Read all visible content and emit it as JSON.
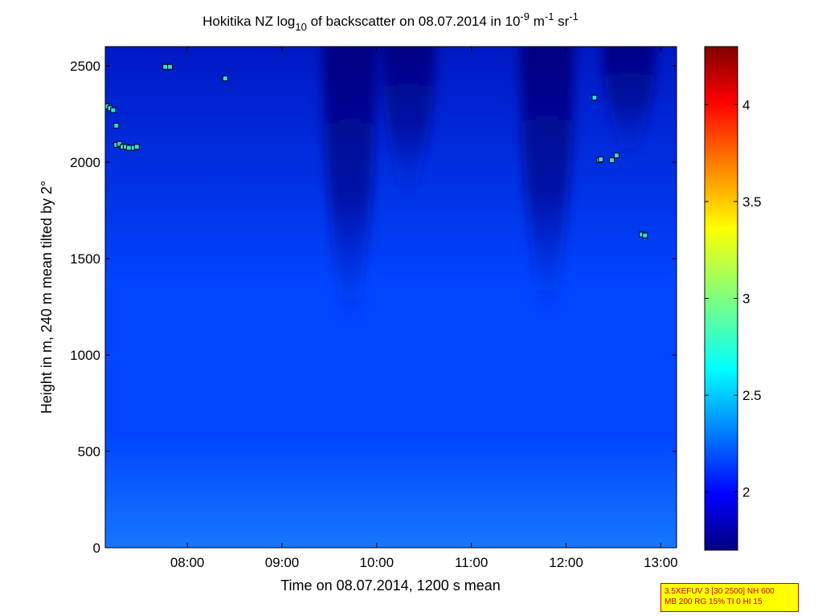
{
  "chart_data": {
    "type": "heatmap",
    "title": {
      "pre": "Hokitika NZ log",
      "sub": "10",
      "mid": " of backscatter on 08.07.2014 in 10",
      "sup1": "-9",
      "unit_m": " m",
      "sup2": "-1",
      "unit_sr": " sr",
      "sup3": "-1"
    },
    "xlabel": "Time on 08.07.2014, 1200 s mean",
    "ylabel": "Height in m, 240 m mean tilted by 2°",
    "x_range": [
      "07:08",
      "13:10"
    ],
    "x_ticks": [
      "08:00",
      "09:00",
      "10:00",
      "11:00",
      "12:00",
      "13:00"
    ],
    "ylim": [
      0,
      2600
    ],
    "y_ticks": [
      "0",
      "500",
      "1000",
      "1500",
      "2000",
      "2500"
    ],
    "colorbar": {
      "range": [
        1.7,
        4.3
      ],
      "ticks": [
        "2",
        "2.5",
        "3",
        "3.5",
        "4"
      ],
      "colormap": "jet"
    },
    "background_value": 2.2,
    "low_value_plumes": [
      {
        "center": "09:43",
        "bottom_height": 1250,
        "value": 1.75
      },
      {
        "center": "11:48",
        "bottom_height": 1300,
        "value": 1.75
      },
      {
        "center": "10:20",
        "bottom_height": 1900,
        "value": 1.9
      },
      {
        "center": "12:40",
        "bottom_height": 2100,
        "value": 1.95
      }
    ],
    "cloud_markers": [
      {
        "time": "07:09",
        "height": 2290
      },
      {
        "time": "07:11",
        "height": 2280
      },
      {
        "time": "07:13",
        "height": 2270
      },
      {
        "time": "07:15",
        "height": 2190
      },
      {
        "time": "07:15",
        "height": 2090
      },
      {
        "time": "07:17",
        "height": 2095
      },
      {
        "time": "07:19",
        "height": 2080
      },
      {
        "time": "07:21",
        "height": 2080
      },
      {
        "time": "07:23",
        "height": 2075
      },
      {
        "time": "07:26",
        "height": 2075
      },
      {
        "time": "07:28",
        "height": 2080
      },
      {
        "time": "07:46",
        "height": 2495
      },
      {
        "time": "07:49",
        "height": 2495
      },
      {
        "time": "08:24",
        "height": 2435
      },
      {
        "time": "12:18",
        "height": 2335
      },
      {
        "time": "12:21",
        "height": 2010
      },
      {
        "time": "12:22",
        "height": 2015
      },
      {
        "time": "12:29",
        "height": 2010
      },
      {
        "time": "12:32",
        "height": 2035
      },
      {
        "time": "12:48",
        "height": 1625
      },
      {
        "time": "12:50",
        "height": 1620
      }
    ]
  },
  "info_box": {
    "line1": "3.5XEFUV 3 [30 2500] NH 600",
    "line2": "MB 200 RG 15% TI 0 HI 15"
  }
}
